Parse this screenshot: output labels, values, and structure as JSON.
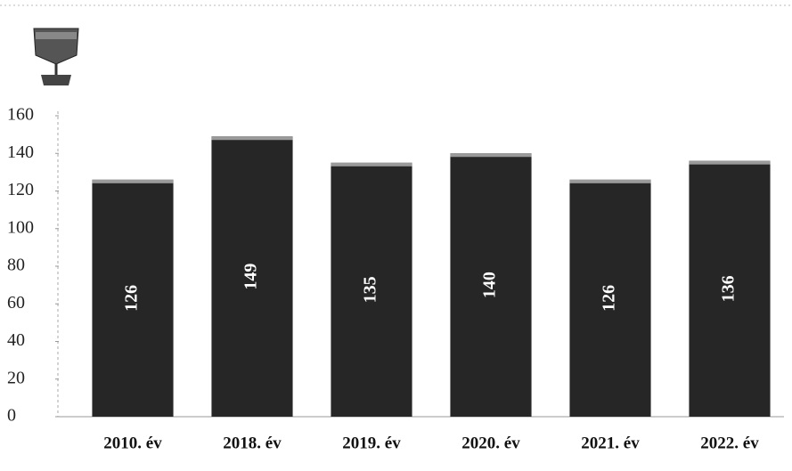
{
  "chart_data": {
    "type": "bar",
    "categories": [
      "2010. év",
      "2018. év",
      "2019. év",
      "2020. év",
      "2021. év",
      "2022. év"
    ],
    "values": [
      126,
      149,
      135,
      140,
      126,
      136
    ],
    "color": "#262626",
    "ylim": [
      0,
      160
    ],
    "yticks": [
      0,
      20,
      40,
      60,
      80,
      100,
      120,
      140,
      160
    ]
  }
}
